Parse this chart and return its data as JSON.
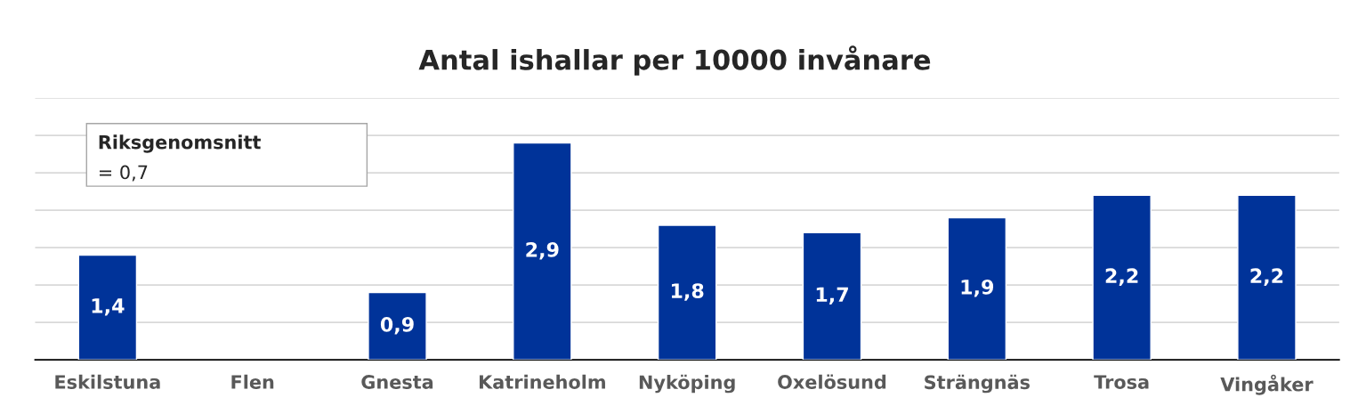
{
  "chart_data": {
    "type": "bar",
    "title": "Antal ishallar per 10000 invånare",
    "categories": [
      "Eskilstuna",
      "Flen",
      "Gnesta",
      "Katrineholm",
      "Nyköping",
      "Oxelösund",
      "Strängnäs",
      "Trosa",
      "Vingåker"
    ],
    "values": [
      1.4,
      null,
      0.9,
      2.9,
      1.8,
      1.7,
      1.9,
      2.2,
      2.2
    ],
    "value_labels": [
      "1,4",
      null,
      "0,9",
      "2,9",
      "1,8",
      "1,7",
      "1,9",
      "2,2",
      "2,2"
    ],
    "color": "#003399",
    "ylim": [
      0,
      3.5
    ],
    "yticks": [
      {
        "value": 0.5,
        "label": null
      },
      {
        "value": 1,
        "label": null
      },
      {
        "value": 1.5,
        "label": null
      },
      {
        "value": 2,
        "label": null
      },
      {
        "value": 2.5,
        "label": null
      },
      {
        "value": 3,
        "label": null
      },
      {
        "value": 3.5,
        "label": null
      }
    ],
    "tick_labels": "x",
    "grid": "y",
    "annotations": [
      "Riksgenomsnitt",
      "= 0,7"
    ]
  }
}
